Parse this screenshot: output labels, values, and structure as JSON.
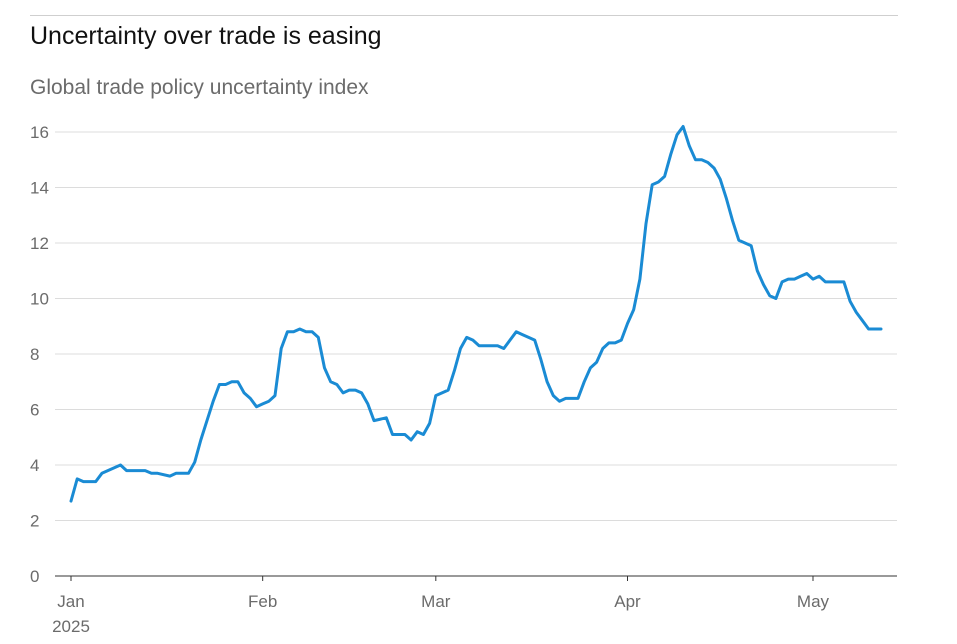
{
  "colors": {
    "line": "#1a8bd4",
    "grid": "#dcdcdc",
    "axis": "#333333",
    "text": "#6b6b6b"
  },
  "chart_data": {
    "type": "line",
    "title": "Uncertainty over trade is easing",
    "subtitle": "Global trade policy uncertainty index",
    "xlabel": "",
    "ylabel": "",
    "ylim": [
      0,
      16
    ],
    "yticks": [
      0,
      2,
      4,
      6,
      8,
      10,
      12,
      14,
      16
    ],
    "grid": true,
    "legend": "none",
    "xlim": [
      "2025-01-01",
      "2025-05-13"
    ],
    "xticks": [
      {
        "date": "2025-01-01",
        "label": "Jan",
        "sublabel": "2025"
      },
      {
        "date": "2025-02-01",
        "label": "Feb",
        "sublabel": ""
      },
      {
        "date": "2025-03-01",
        "label": "Mar",
        "sublabel": ""
      },
      {
        "date": "2025-04-01",
        "label": "Apr",
        "sublabel": ""
      },
      {
        "date": "2025-05-01",
        "label": "May",
        "sublabel": ""
      }
    ],
    "series": [
      {
        "name": "",
        "points": [
          [
            "2025-01-01",
            2.7
          ],
          [
            "2025-01-02",
            3.5
          ],
          [
            "2025-01-03",
            3.4
          ],
          [
            "2025-01-05",
            3.4
          ],
          [
            "2025-01-06",
            3.7
          ],
          [
            "2025-01-08",
            3.9
          ],
          [
            "2025-01-09",
            4.0
          ],
          [
            "2025-01-10",
            3.8
          ],
          [
            "2025-01-13",
            3.8
          ],
          [
            "2025-01-14",
            3.7
          ],
          [
            "2025-01-15",
            3.7
          ],
          [
            "2025-01-17",
            3.6
          ],
          [
            "2025-01-18",
            3.7
          ],
          [
            "2025-01-20",
            3.7
          ],
          [
            "2025-01-21",
            4.1
          ],
          [
            "2025-01-22",
            4.9
          ],
          [
            "2025-01-23",
            5.6
          ],
          [
            "2025-01-24",
            6.3
          ],
          [
            "2025-01-25",
            6.9
          ],
          [
            "2025-01-26",
            6.9
          ],
          [
            "2025-01-27",
            7.0
          ],
          [
            "2025-01-28",
            7.0
          ],
          [
            "2025-01-29",
            6.6
          ],
          [
            "2025-01-30",
            6.4
          ],
          [
            "2025-01-31",
            6.1
          ],
          [
            "2025-02-01",
            6.2
          ],
          [
            "2025-02-02",
            6.3
          ],
          [
            "2025-02-03",
            6.5
          ],
          [
            "2025-02-04",
            8.2
          ],
          [
            "2025-02-05",
            8.8
          ],
          [
            "2025-02-06",
            8.8
          ],
          [
            "2025-02-07",
            8.9
          ],
          [
            "2025-02-08",
            8.8
          ],
          [
            "2025-02-09",
            8.8
          ],
          [
            "2025-02-10",
            8.6
          ],
          [
            "2025-02-11",
            7.5
          ],
          [
            "2025-02-12",
            7.0
          ],
          [
            "2025-02-13",
            6.9
          ],
          [
            "2025-02-14",
            6.6
          ],
          [
            "2025-02-15",
            6.7
          ],
          [
            "2025-02-16",
            6.7
          ],
          [
            "2025-02-17",
            6.6
          ],
          [
            "2025-02-18",
            6.2
          ],
          [
            "2025-02-19",
            5.6
          ],
          [
            "2025-02-21",
            5.7
          ],
          [
            "2025-02-22",
            5.1
          ],
          [
            "2025-02-24",
            5.1
          ],
          [
            "2025-02-25",
            4.9
          ],
          [
            "2025-02-26",
            5.2
          ],
          [
            "2025-02-27",
            5.1
          ],
          [
            "2025-02-28",
            5.5
          ],
          [
            "2025-03-01",
            6.5
          ],
          [
            "2025-03-03",
            6.7
          ],
          [
            "2025-03-04",
            7.4
          ],
          [
            "2025-03-05",
            8.2
          ],
          [
            "2025-03-06",
            8.6
          ],
          [
            "2025-03-07",
            8.5
          ],
          [
            "2025-03-08",
            8.3
          ],
          [
            "2025-03-10",
            8.3
          ],
          [
            "2025-03-11",
            8.3
          ],
          [
            "2025-03-12",
            8.2
          ],
          [
            "2025-03-13",
            8.5
          ],
          [
            "2025-03-14",
            8.8
          ],
          [
            "2025-03-15",
            8.7
          ],
          [
            "2025-03-16",
            8.6
          ],
          [
            "2025-03-17",
            8.5
          ],
          [
            "2025-03-18",
            7.8
          ],
          [
            "2025-03-19",
            7.0
          ],
          [
            "2025-03-20",
            6.5
          ],
          [
            "2025-03-21",
            6.3
          ],
          [
            "2025-03-22",
            6.4
          ],
          [
            "2025-03-24",
            6.4
          ],
          [
            "2025-03-25",
            7.0
          ],
          [
            "2025-03-26",
            7.5
          ],
          [
            "2025-03-27",
            7.7
          ],
          [
            "2025-03-28",
            8.2
          ],
          [
            "2025-03-29",
            8.4
          ],
          [
            "2025-03-30",
            8.4
          ],
          [
            "2025-03-31",
            8.5
          ],
          [
            "2025-04-01",
            9.1
          ],
          [
            "2025-04-02",
            9.6
          ],
          [
            "2025-04-03",
            10.7
          ],
          [
            "2025-04-04",
            12.7
          ],
          [
            "2025-04-05",
            14.1
          ],
          [
            "2025-04-06",
            14.2
          ],
          [
            "2025-04-07",
            14.4
          ],
          [
            "2025-04-08",
            15.2
          ],
          [
            "2025-04-09",
            15.9
          ],
          [
            "2025-04-10",
            16.2
          ],
          [
            "2025-04-11",
            15.5
          ],
          [
            "2025-04-12",
            15.0
          ],
          [
            "2025-04-13",
            15.0
          ],
          [
            "2025-04-14",
            14.9
          ],
          [
            "2025-04-15",
            14.7
          ],
          [
            "2025-04-16",
            14.3
          ],
          [
            "2025-04-17",
            13.6
          ],
          [
            "2025-04-18",
            12.8
          ],
          [
            "2025-04-19",
            12.1
          ],
          [
            "2025-04-20",
            12.0
          ],
          [
            "2025-04-21",
            11.9
          ],
          [
            "2025-04-22",
            11.0
          ],
          [
            "2025-04-23",
            10.5
          ],
          [
            "2025-04-24",
            10.1
          ],
          [
            "2025-04-25",
            10.0
          ],
          [
            "2025-04-26",
            10.6
          ],
          [
            "2025-04-27",
            10.7
          ],
          [
            "2025-04-28",
            10.7
          ],
          [
            "2025-04-29",
            10.8
          ],
          [
            "2025-04-30",
            10.9
          ],
          [
            "2025-05-01",
            10.7
          ],
          [
            "2025-05-02",
            10.8
          ],
          [
            "2025-05-03",
            10.6
          ],
          [
            "2025-05-04",
            10.6
          ],
          [
            "2025-05-05",
            10.6
          ],
          [
            "2025-05-06",
            10.6
          ],
          [
            "2025-05-07",
            9.9
          ],
          [
            "2025-05-08",
            9.5
          ],
          [
            "2025-05-09",
            9.2
          ],
          [
            "2025-05-10",
            8.9
          ],
          [
            "2025-05-11",
            8.9
          ],
          [
            "2025-05-12",
            8.9
          ]
        ]
      }
    ]
  }
}
